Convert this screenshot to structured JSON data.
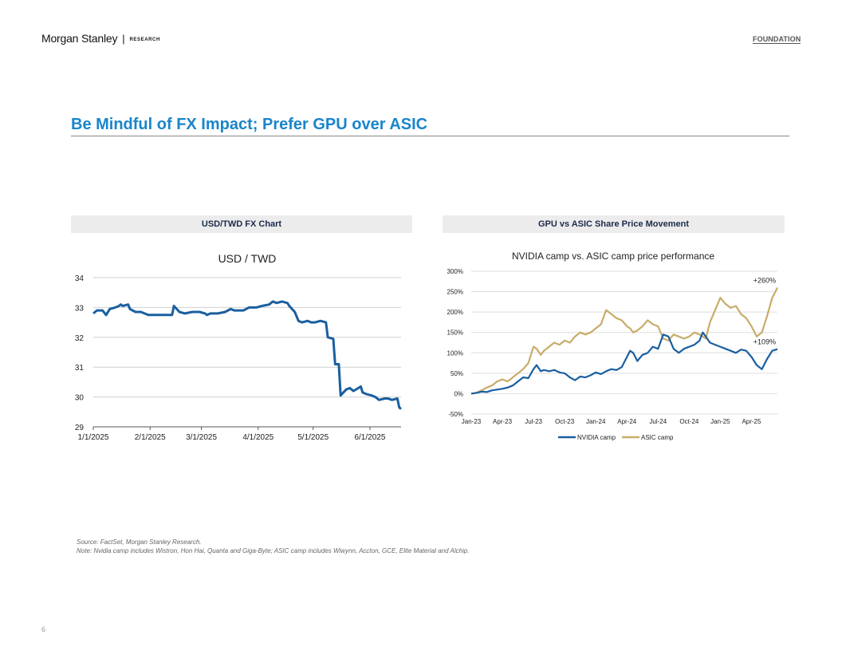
{
  "header": {
    "brand": "Morgan Stanley",
    "separator": "|",
    "research": "RESEARCH",
    "foundation": "FOUNDATION"
  },
  "page_title": "Be Mindful of FX Impact; Prefer GPU over ASIC",
  "panels": {
    "left_heading": "USD/TWD FX Chart",
    "right_heading": "GPU vs ASIC Share Price Movement"
  },
  "chart_data": [
    {
      "type": "line",
      "title": "USD / TWD",
      "xlabel": "",
      "ylabel": "",
      "ylim": [
        29,
        34
      ],
      "y_ticks": [
        29,
        30,
        31,
        32,
        33,
        34
      ],
      "x_tick_labels": [
        "1/1/2025",
        "2/1/2025",
        "3/1/2025",
        "4/1/2025",
        "5/1/2025",
        "6/1/2025"
      ],
      "x_ticks": [
        "2025-01-01",
        "2025-02-01",
        "2025-03-01",
        "2025-04-01",
        "2025-05-01",
        "2025-06-01"
      ],
      "x_range": [
        "2025-01-01",
        "2025-06-18"
      ],
      "grid": "horizontal",
      "series": [
        {
          "color": "#1a5fa0",
          "points": [
            [
              "2025-01-01",
              32.8
            ],
            [
              "2025-01-03",
              32.9
            ],
            [
              "2025-01-06",
              32.9
            ],
            [
              "2025-01-08",
              32.75
            ],
            [
              "2025-01-10",
              32.95
            ],
            [
              "2025-01-13",
              33.0
            ],
            [
              "2025-01-15",
              33.05
            ],
            [
              "2025-01-16",
              33.1
            ],
            [
              "2025-01-17",
              33.05
            ],
            [
              "2025-01-20",
              33.1
            ],
            [
              "2025-01-21",
              32.95
            ],
            [
              "2025-01-24",
              32.85
            ],
            [
              "2025-01-27",
              32.85
            ],
            [
              "2025-01-31",
              32.75
            ],
            [
              "2025-02-05",
              32.75
            ],
            [
              "2025-02-10",
              32.75
            ],
            [
              "2025-02-13",
              32.75
            ],
            [
              "2025-02-14",
              33.05
            ],
            [
              "2025-02-17",
              32.85
            ],
            [
              "2025-02-20",
              32.8
            ],
            [
              "2025-02-24",
              32.85
            ],
            [
              "2025-02-28",
              32.85
            ],
            [
              "2025-03-03",
              32.8
            ],
            [
              "2025-03-04",
              32.75
            ],
            [
              "2025-03-06",
              32.8
            ],
            [
              "2025-03-10",
              32.8
            ],
            [
              "2025-03-14",
              32.85
            ],
            [
              "2025-03-17",
              32.95
            ],
            [
              "2025-03-19",
              32.9
            ],
            [
              "2025-03-24",
              32.9
            ],
            [
              "2025-03-27",
              33.0
            ],
            [
              "2025-03-31",
              33.0
            ],
            [
              "2025-04-03",
              33.05
            ],
            [
              "2025-04-07",
              33.1
            ],
            [
              "2025-04-09",
              33.2
            ],
            [
              "2025-04-11",
              33.15
            ],
            [
              "2025-04-14",
              33.2
            ],
            [
              "2025-04-17",
              33.15
            ],
            [
              "2025-04-18",
              33.05
            ],
            [
              "2025-04-21",
              32.85
            ],
            [
              "2025-04-23",
              32.55
            ],
            [
              "2025-04-25",
              32.5
            ],
            [
              "2025-04-28",
              32.55
            ],
            [
              "2025-04-30",
              32.5
            ],
            [
              "2025-05-02",
              32.5
            ],
            [
              "2025-05-05",
              32.55
            ],
            [
              "2025-05-08",
              32.5
            ],
            [
              "2025-05-09",
              32.0
            ],
            [
              "2025-05-12",
              31.95
            ],
            [
              "2025-05-13",
              31.1
            ],
            [
              "2025-05-15",
              31.1
            ],
            [
              "2025-05-16",
              30.05
            ],
            [
              "2025-05-19",
              30.25
            ],
            [
              "2025-05-21",
              30.3
            ],
            [
              "2025-05-23",
              30.2
            ],
            [
              "2025-05-27",
              30.35
            ],
            [
              "2025-05-28",
              30.15
            ],
            [
              "2025-05-30",
              30.1
            ],
            [
              "2025-06-02",
              30.05
            ],
            [
              "2025-06-04",
              30.0
            ],
            [
              "2025-06-06",
              29.9
            ],
            [
              "2025-06-09",
              29.95
            ],
            [
              "2025-06-11",
              29.95
            ],
            [
              "2025-06-13",
              29.9
            ],
            [
              "2025-06-16",
              29.95
            ],
            [
              "2025-06-17",
              29.65
            ],
            [
              "2025-06-18",
              29.6
            ]
          ]
        }
      ]
    },
    {
      "type": "line",
      "title": "NVIDIA camp vs. ASIC camp price performance",
      "xlabel": "",
      "ylabel": "",
      "ylim": [
        -50,
        300
      ],
      "y_ticks": [
        -50,
        0,
        50,
        100,
        150,
        200,
        250,
        300
      ],
      "y_tick_labels": [
        "-50%",
        "0%",
        "50%",
        "100%",
        "150%",
        "200%",
        "250%",
        "300%"
      ],
      "x_ticks": [
        "Jan-23",
        "Apr-23",
        "Jul-23",
        "Oct-23",
        "Jan-24",
        "Apr-24",
        "Jul-24",
        "Oct-24",
        "Jan-25",
        "Apr-25"
      ],
      "x_range": [
        0,
        29.5
      ],
      "x_unit": "months since Jan-23",
      "grid": "horizontal",
      "legend": "bottom",
      "annotations": [
        {
          "text": "+260%",
          "series": "ASIC camp"
        },
        {
          "text": "+109%",
          "series": "NVIDIA camp"
        }
      ],
      "series": [
        {
          "name": "NVIDIA camp",
          "color": "#1a5fa0",
          "x": [
            0,
            0.5,
            1,
            1.5,
            2,
            2.5,
            3,
            3.5,
            4,
            4.5,
            5,
            5.5,
            6,
            6.3,
            6.7,
            7,
            7.5,
            8,
            8.5,
            9,
            9.5,
            10,
            10.5,
            11,
            11.5,
            12,
            12.5,
            13,
            13.5,
            14,
            14.5,
            15,
            15.3,
            15.6,
            16,
            16.5,
            17,
            17.5,
            18,
            18.5,
            19,
            19.5,
            20,
            20.5,
            21,
            21.5,
            22,
            22.3,
            22.6,
            23,
            23.5,
            24,
            24.5,
            25,
            25.5,
            26,
            26.5,
            27,
            27.5,
            28,
            28.5,
            29,
            29.5
          ],
          "values": [
            0,
            2,
            5,
            4,
            8,
            10,
            12,
            15,
            20,
            30,
            40,
            38,
            60,
            70,
            55,
            58,
            55,
            58,
            52,
            50,
            40,
            33,
            42,
            40,
            45,
            52,
            48,
            55,
            60,
            58,
            65,
            90,
            105,
            100,
            80,
            95,
            100,
            115,
            110,
            145,
            140,
            110,
            100,
            110,
            115,
            120,
            130,
            150,
            140,
            125,
            120,
            115,
            110,
            105,
            100,
            108,
            105,
            90,
            70,
            60,
            85,
            105,
            109
          ]
        },
        {
          "name": "ASIC camp",
          "color": "#c8ac6a",
          "x": [
            0,
            0.5,
            1,
            1.5,
            2,
            2.5,
            3,
            3.5,
            4,
            4.5,
            5,
            5.5,
            6,
            6.3,
            6.7,
            7,
            7.5,
            8,
            8.5,
            9,
            9.5,
            10,
            10.5,
            11,
            11.5,
            12,
            12.5,
            13,
            13.5,
            14,
            14.5,
            15,
            15.3,
            15.6,
            16,
            16.5,
            17,
            17.5,
            18,
            18.5,
            19,
            19.5,
            20,
            20.5,
            21,
            21.5,
            22,
            22.3,
            22.6,
            23,
            23.5,
            24,
            24.5,
            25,
            25.5,
            26,
            26.5,
            27,
            27.5,
            28,
            28.5,
            29,
            29.5
          ],
          "values": [
            0,
            2,
            8,
            15,
            20,
            30,
            35,
            30,
            40,
            50,
            60,
            75,
            115,
            110,
            95,
            105,
            115,
            125,
            120,
            130,
            125,
            140,
            150,
            145,
            150,
            160,
            170,
            205,
            195,
            185,
            180,
            165,
            160,
            150,
            155,
            165,
            180,
            170,
            165,
            135,
            130,
            145,
            140,
            135,
            140,
            150,
            145,
            140,
            135,
            175,
            205,
            235,
            220,
            210,
            215,
            195,
            185,
            165,
            140,
            150,
            190,
            235,
            260
          ]
        }
      ]
    }
  ],
  "footnotes": {
    "source": "Source: FactSet, Morgan Stanley Research.",
    "note": "Note: Nvidia camp includes Wistron, Hon Hai, Quanta and Giga-Byte; ASIC camp includes Wiwynn, Accton, GCE, Elite Material and Alchip."
  },
  "page_number": "6"
}
